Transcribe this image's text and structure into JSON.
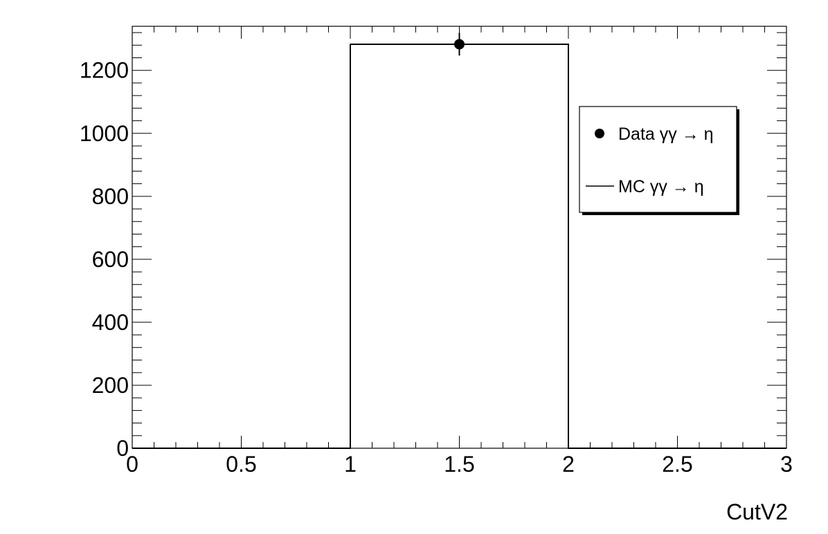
{
  "chart_data": {
    "type": "bar",
    "xlabel": "CutV2",
    "ylabel": "",
    "xlim": [
      0,
      3
    ],
    "ylim": [
      0,
      1340
    ],
    "grid": false,
    "legend_position": "top-right",
    "x_ticks": [
      "0",
      "0.5",
      "1",
      "1.5",
      "2",
      "2.5",
      "3"
    ],
    "y_ticks": [
      "0",
      "200",
      "400",
      "600",
      "800",
      "1000",
      "1200"
    ],
    "series": [
      {
        "name": "MC γγ → η",
        "style": "histogram-step",
        "color": "#000000",
        "bins": [
          {
            "low": 0,
            "high": 1,
            "value": 0
          },
          {
            "low": 1,
            "high": 2,
            "value": 1283
          },
          {
            "low": 2,
            "high": 3,
            "value": 0
          }
        ]
      },
      {
        "name": "Data γγ → η",
        "style": "marker-errorbar",
        "color": "#000000",
        "points": [
          {
            "x": 1.5,
            "y": 1283,
            "err": 36
          }
        ]
      }
    ]
  }
}
